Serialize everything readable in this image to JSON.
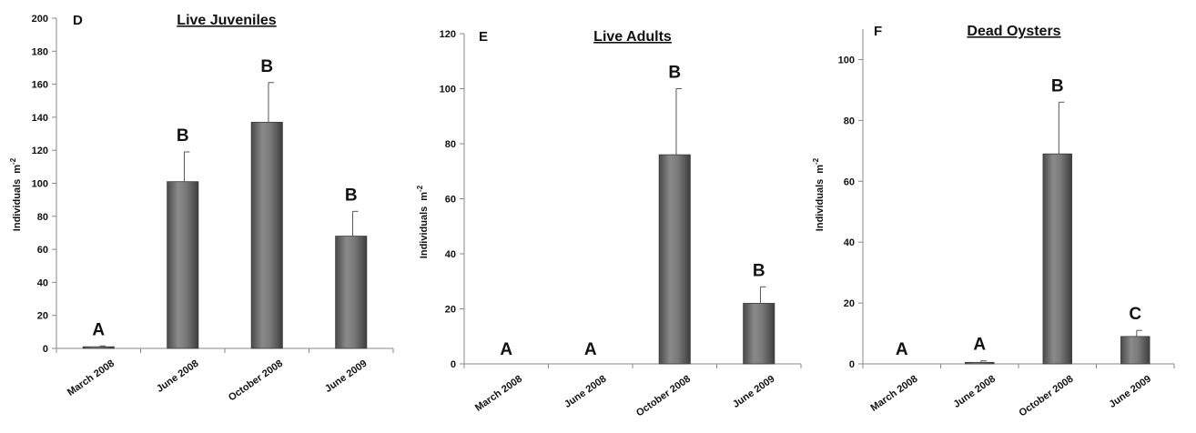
{
  "chart_data": [
    {
      "type": "bar",
      "panel_label": "D",
      "title": "Live Juveniles",
      "ylabel": "Individuals",
      "ylabel_unit": "m",
      "ylabel_exp": "-2",
      "categories": [
        "March 2008",
        "June 2008",
        "October 2008",
        "June 2009"
      ],
      "values": [
        1,
        101,
        137,
        68
      ],
      "errors": [
        0.5,
        18,
        24,
        15
      ],
      "significance": [
        "A",
        "B",
        "B",
        "B"
      ],
      "ylim": [
        0,
        200
      ],
      "yticks": [
        0,
        20,
        40,
        60,
        80,
        100,
        120,
        140,
        160,
        180,
        200
      ],
      "bar_color": "#6f6f6f",
      "grid": false
    },
    {
      "type": "bar",
      "panel_label": "E",
      "title": "Live Adults",
      "ylabel": "Individuals",
      "ylabel_unit": "m",
      "ylabel_exp": "-2",
      "categories": [
        "March 2008",
        "June 2008",
        "October 2008",
        "June 2009"
      ],
      "values": [
        0,
        0,
        76,
        22
      ],
      "errors": [
        0,
        0,
        24,
        6
      ],
      "significance": [
        "A",
        "A",
        "B",
        "B"
      ],
      "ylim": [
        0,
        120
      ],
      "yticks": [
        0,
        20,
        40,
        60,
        80,
        100,
        120
      ],
      "bar_color": "#6f6f6f",
      "grid": false
    },
    {
      "type": "bar",
      "panel_label": "F",
      "title": "Dead Oysters",
      "ylabel": "Individuals",
      "ylabel_unit": "m",
      "ylabel_exp": "-2",
      "categories": [
        "March 2008",
        "June 2008",
        "October 2008",
        "June 2009"
      ],
      "values": [
        0,
        0.5,
        69,
        9
      ],
      "errors": [
        0,
        0.5,
        17,
        2
      ],
      "significance": [
        "A",
        "A",
        "B",
        "C"
      ],
      "ylim": [
        0,
        110
      ],
      "yticks": [
        0,
        20,
        40,
        60,
        80,
        100
      ],
      "bar_color": "#6f6f6f",
      "grid": false
    }
  ]
}
